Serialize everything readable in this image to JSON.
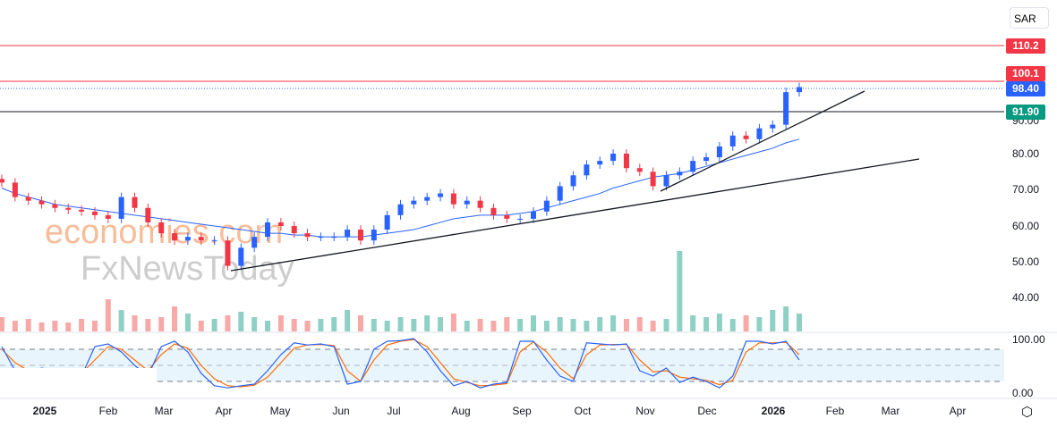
{
  "currency_selector": {
    "label": "SAR",
    "chevron": "⌄"
  },
  "price_tags": {
    "r1": {
      "value": "110.2",
      "color": "#f23645"
    },
    "r2": {
      "value": "100.1",
      "color": "#f23645"
    },
    "last": {
      "value": "98.40",
      "color": "#2962ff"
    },
    "s1": {
      "value": "91.90",
      "color": "#089981"
    }
  },
  "watermark": {
    "line1": "economies.com",
    "line2": "FxNewsToday"
  },
  "settings_icon": "gear-icon",
  "chart_data": {
    "type": "candlestick",
    "title": "",
    "y_axis": {
      "ticks": [
        "80.00",
        "70.00",
        "60.00",
        "50.00",
        "40.00"
      ],
      "hidden_tick": "90.00",
      "range": [
        35,
        115
      ]
    },
    "stoch_axis": {
      "ticks": [
        "100.00",
        "0.00"
      ],
      "bands": [
        80,
        50,
        20
      ]
    },
    "x_axis": {
      "ticks": [
        "2025",
        "Feb",
        "Mar",
        "Apr",
        "May",
        "Jun",
        "Jul",
        "Aug",
        "Sep",
        "Oct",
        "Nov",
        "Dec",
        "2026",
        "Feb",
        "Mar",
        "Apr"
      ]
    },
    "horizontal_levels": [
      110.2,
      100.1,
      91.9
    ],
    "last_price": 98.4,
    "closes": [
      72,
      68,
      67,
      66,
      65,
      64.5,
      64,
      63,
      62,
      68,
      65,
      61,
      58,
      56,
      57,
      56,
      56,
      49,
      54,
      57,
      61,
      60,
      58,
      57,
      57,
      57,
      59,
      56,
      59,
      63,
      66,
      67,
      68,
      69,
      66,
      67,
      65,
      63,
      62,
      62,
      64,
      67,
      71,
      74,
      77,
      78,
      80,
      76,
      75,
      71,
      74,
      75,
      78,
      79,
      82,
      85,
      84,
      87,
      88,
      97,
      98.4
    ],
    "moving_average": [
      70.5,
      69,
      68,
      67,
      66,
      65.5,
      65,
      64.5,
      64,
      63.5,
      63,
      62.5,
      62,
      61.5,
      61,
      60.5,
      60,
      59.5,
      59,
      58.5,
      58,
      58,
      57.5,
      57.5,
      57,
      57,
      57,
      57,
      57.5,
      58,
      58.5,
      59,
      60,
      61,
      62,
      62.5,
      63,
      63,
      63,
      63.5,
      64,
      65,
      66,
      67,
      68,
      69,
      70.5,
      71.5,
      72.5,
      73.5,
      74,
      74.5,
      75.5,
      76.5,
      77.5,
      78.5,
      79.5,
      80.5,
      81.5,
      83,
      84
    ],
    "volume": [
      8,
      6,
      7,
      5,
      6,
      5,
      7,
      6,
      18,
      12,
      9,
      7,
      8,
      14,
      10,
      6,
      7,
      9,
      11,
      8,
      6,
      9,
      7,
      6,
      7,
      8,
      12,
      9,
      7,
      6,
      8,
      7,
      9,
      8,
      10,
      6,
      7,
      6,
      8,
      7,
      9,
      6,
      8,
      7,
      6,
      8,
      9,
      7,
      8,
      6,
      7,
      45,
      9,
      8,
      10,
      7,
      9,
      8,
      12,
      14,
      10
    ],
    "stoch_k": [
      85,
      40,
      35,
      45,
      40,
      42,
      30,
      85,
      90,
      75,
      50,
      30,
      85,
      95,
      75,
      35,
      12,
      8,
      12,
      15,
      40,
      70,
      92,
      88,
      90,
      85,
      15,
      20,
      80,
      95,
      96,
      100,
      75,
      40,
      12,
      20,
      8,
      15,
      18,
      95,
      95,
      60,
      30,
      20,
      92,
      90,
      88,
      90,
      40,
      30,
      45,
      18,
      28,
      20,
      8,
      30,
      95,
      95,
      90,
      95,
      60
    ],
    "stoch_d": [
      80,
      55,
      40,
      40,
      42,
      41,
      35,
      60,
      85,
      80,
      60,
      40,
      70,
      90,
      82,
      50,
      25,
      12,
      10,
      13,
      28,
      55,
      82,
      88,
      89,
      87,
      40,
      20,
      60,
      88,
      95,
      98,
      85,
      55,
      25,
      18,
      12,
      13,
      16,
      75,
      94,
      75,
      45,
      25,
      70,
      88,
      89,
      89,
      60,
      38,
      40,
      28,
      25,
      22,
      14,
      22,
      75,
      92,
      92,
      93,
      70
    ]
  }
}
